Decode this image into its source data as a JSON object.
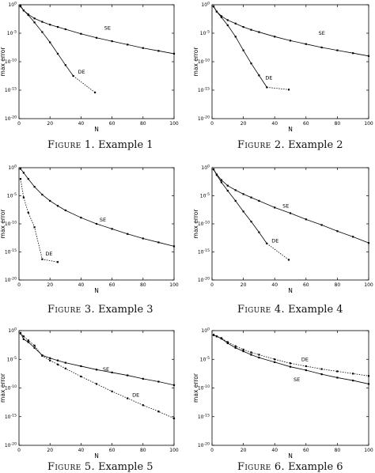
{
  "chart_data": [
    {
      "type": "line",
      "caption_prefix": "Figure 1.",
      "caption_text": "Example 1",
      "xlabel": "N",
      "ylabel": "max error",
      "xlim": [
        0,
        100
      ],
      "ylim_log10": [
        -20,
        0
      ],
      "x_ticks": [
        "0",
        "20",
        "40",
        "60",
        "80",
        "100"
      ],
      "y_ticks": [
        "10^0",
        "10^-5",
        "10^-10",
        "10^-15",
        "10^-20"
      ],
      "y_log": true,
      "series": [
        {
          "name": "SE",
          "x": [
            1,
            3,
            6,
            10,
            15,
            20,
            25,
            30,
            40,
            50,
            60,
            70,
            80,
            90,
            100
          ],
          "y_log10": [
            -0.3,
            -1.0,
            -1.7,
            -2.4,
            -3.0,
            -3.5,
            -3.9,
            -4.3,
            -5.1,
            -5.8,
            -6.4,
            -7.0,
            -7.6,
            -8.1,
            -8.6
          ],
          "dash": false
        },
        {
          "name": "DE",
          "x": [
            1,
            3,
            6,
            10,
            15,
            20,
            25,
            30,
            35,
            49
          ],
          "y_log10": [
            -0.2,
            -1.0,
            -1.8,
            -3.1,
            -4.8,
            -6.6,
            -8.6,
            -10.6,
            -12.5,
            -15.4
          ],
          "dash_from_index": 8
        }
      ],
      "annotations": [
        {
          "text": "SE",
          "x": 55,
          "y_log10": -4.4
        },
        {
          "text": "DE",
          "x": 38,
          "y_log10": -12.1
        }
      ]
    },
    {
      "type": "line",
      "caption_prefix": "Figure 2.",
      "caption_text": "Example 2",
      "xlabel": "N",
      "ylabel": "max error",
      "xlim": [
        0,
        100
      ],
      "ylim_log10": [
        -20,
        0
      ],
      "x_ticks": [
        "0",
        "20",
        "40",
        "60",
        "80",
        "100"
      ],
      "y_ticks": [
        "10^0",
        "10^-5",
        "10^-10",
        "10^-15",
        "10^-20"
      ],
      "y_log": true,
      "series": [
        {
          "name": "SE",
          "x": [
            1,
            3,
            6,
            10,
            15,
            20,
            25,
            30,
            40,
            50,
            60,
            70,
            80,
            90,
            100
          ],
          "y_log10": [
            -0.3,
            -1.2,
            -2.0,
            -2.7,
            -3.3,
            -3.9,
            -4.4,
            -4.8,
            -5.6,
            -6.3,
            -6.9,
            -7.5,
            -8.0,
            -8.5,
            -9.0
          ],
          "dash": false
        },
        {
          "name": "DE",
          "x": [
            1,
            3,
            6,
            10,
            15,
            20,
            25,
            30,
            35,
            49
          ],
          "y_log10": [
            -0.3,
            -1.2,
            -2.2,
            -3.6,
            -5.6,
            -8.0,
            -10.3,
            -12.4,
            -14.5,
            -14.9
          ],
          "dash_from_index": 8
        }
      ],
      "annotations": [
        {
          "text": "SE",
          "x": 68,
          "y_log10": -5.3
        },
        {
          "text": "DE",
          "x": 34,
          "y_log10": -13.1
        }
      ]
    },
    {
      "type": "line",
      "caption_prefix": "Figure 3.",
      "caption_text": "Example 3",
      "xlabel": "N",
      "ylabel": "max error",
      "xlim": [
        0,
        100
      ],
      "ylim_log10": [
        -20,
        0
      ],
      "x_ticks": [
        "0",
        "20",
        "40",
        "60",
        "80",
        "100"
      ],
      "y_ticks": [
        "10^0",
        "10^-5",
        "10^-10",
        "10^-15",
        "10^-20"
      ],
      "y_log": true,
      "series": [
        {
          "name": "SE",
          "x": [
            1,
            3,
            6,
            10,
            15,
            20,
            25,
            30,
            40,
            50,
            60,
            70,
            80,
            90,
            100
          ],
          "y_log10": [
            -0.2,
            -0.9,
            -2.0,
            -3.4,
            -4.8,
            -5.9,
            -6.8,
            -7.6,
            -8.9,
            -10.0,
            -10.9,
            -11.8,
            -12.6,
            -13.3,
            -14.0
          ],
          "dash": false
        },
        {
          "name": "DE",
          "x": [
            1,
            3,
            6,
            10,
            15,
            25
          ],
          "y_log10": [
            -2.0,
            -5.3,
            -8.0,
            -10.6,
            -16.3,
            -16.8
          ],
          "dash": true
        }
      ],
      "annotations": [
        {
          "text": "SE",
          "x": 52,
          "y_log10": -9.6
        },
        {
          "text": "DE",
          "x": 17,
          "y_log10": -15.6
        }
      ]
    },
    {
      "type": "line",
      "caption_prefix": "Figure 4.",
      "caption_text": "Example 4",
      "xlabel": "N",
      "ylabel": "max error",
      "xlim": [
        0,
        100
      ],
      "ylim_log10": [
        -20,
        0
      ],
      "x_ticks": [
        "0",
        "20",
        "40",
        "60",
        "80",
        "100"
      ],
      "y_ticks": [
        "10^0",
        "10^-5",
        "10^-10",
        "10^-15",
        "10^-20"
      ],
      "y_log": true,
      "series": [
        {
          "name": "SE",
          "x": [
            1,
            3,
            6,
            10,
            15,
            20,
            25,
            30,
            40,
            50,
            60,
            70,
            80,
            90,
            100
          ],
          "y_log10": [
            -0.3,
            -1.2,
            -2.2,
            -3.2,
            -4.0,
            -4.7,
            -5.3,
            -5.9,
            -7.1,
            -8.1,
            -9.2,
            -10.2,
            -11.3,
            -12.3,
            -13.4
          ],
          "dash": false
        },
        {
          "name": "DE",
          "x": [
            1,
            3,
            6,
            10,
            15,
            20,
            25,
            30,
            35,
            49
          ],
          "y_log10": [
            -0.3,
            -1.3,
            -2.6,
            -4.1,
            -5.9,
            -7.8,
            -9.6,
            -11.5,
            -13.5,
            -16.4
          ],
          "dash_from_index": 8
        }
      ],
      "annotations": [
        {
          "text": "SE",
          "x": 45,
          "y_log10": -7.1
        },
        {
          "text": "DE",
          "x": 38,
          "y_log10": -13.3
        }
      ]
    },
    {
      "type": "line",
      "caption_prefix": "Figure 5.",
      "caption_text": "Example 5",
      "xlabel": "N",
      "ylabel": "max error",
      "xlim": [
        0,
        100
      ],
      "ylim_log10": [
        -20,
        0
      ],
      "x_ticks": [
        "0",
        "20",
        "40",
        "60",
        "80",
        "100"
      ],
      "y_ticks": [
        "10^0",
        "10^-5",
        "10^-10",
        "10^-15",
        "10^-20"
      ],
      "y_log": true,
      "series": [
        {
          "name": "SE",
          "x": [
            1,
            3,
            6,
            10,
            15,
            20,
            25,
            30,
            40,
            50,
            60,
            70,
            80,
            90,
            100
          ],
          "y_log10": [
            -0.4,
            -1.5,
            -2.0,
            -3.0,
            -4.3,
            -4.8,
            -5.2,
            -5.6,
            -6.2,
            -6.8,
            -7.3,
            -7.8,
            -8.4,
            -8.9,
            -9.5
          ],
          "dash": false
        },
        {
          "name": "DE",
          "x": [
            1,
            3,
            6,
            10,
            15,
            20,
            25,
            30,
            40,
            50,
            60,
            70,
            80,
            90,
            100
          ],
          "y_log10": [
            -0.5,
            -1.0,
            -1.7,
            -2.6,
            -4.4,
            -5.2,
            -5.9,
            -6.6,
            -8.0,
            -9.3,
            -10.6,
            -11.8,
            -13.0,
            -14.1,
            -15.3
          ],
          "dash": true
        }
      ],
      "annotations": [
        {
          "text": "SE",
          "x": 54,
          "y_log10": -7.0
        },
        {
          "text": "DE",
          "x": 73,
          "y_log10": -11.5
        }
      ]
    },
    {
      "type": "line",
      "caption_prefix": "Figure 6.",
      "caption_text": "Example 6",
      "xlabel": "N",
      "ylabel": "max error",
      "xlim": [
        0,
        100
      ],
      "ylim_log10": [
        -20,
        0
      ],
      "x_ticks": [
        "0",
        "20",
        "40",
        "60",
        "80",
        "100"
      ],
      "y_ticks": [
        "10^0",
        "10^-5",
        "10^-10",
        "10^-15",
        "10^-20"
      ],
      "y_log": true,
      "series": [
        {
          "name": "SE",
          "x": [
            1,
            3,
            6,
            10,
            15,
            20,
            25,
            30,
            40,
            50,
            60,
            70,
            80,
            90,
            100
          ],
          "y_log10": [
            -0.8,
            -1.0,
            -1.4,
            -2.2,
            -3.0,
            -3.6,
            -4.2,
            -4.7,
            -5.5,
            -6.3,
            -6.9,
            -7.6,
            -8.2,
            -8.7,
            -9.3
          ],
          "dash": false
        },
        {
          "name": "DE",
          "x": [
            1,
            3,
            6,
            10,
            15,
            20,
            25,
            30,
            40,
            50,
            60,
            70,
            80,
            90,
            100
          ],
          "y_log10": [
            -0.7,
            -1.0,
            -1.3,
            -2.0,
            -2.7,
            -3.3,
            -3.8,
            -4.2,
            -5.0,
            -5.7,
            -6.2,
            -6.7,
            -7.1,
            -7.5,
            -7.9
          ],
          "dash": true
        }
      ],
      "annotations": [
        {
          "text": "DE",
          "x": 57,
          "y_log10": -5.3
        },
        {
          "text": "SE",
          "x": 52,
          "y_log10": -8.8
        }
      ]
    }
  ]
}
